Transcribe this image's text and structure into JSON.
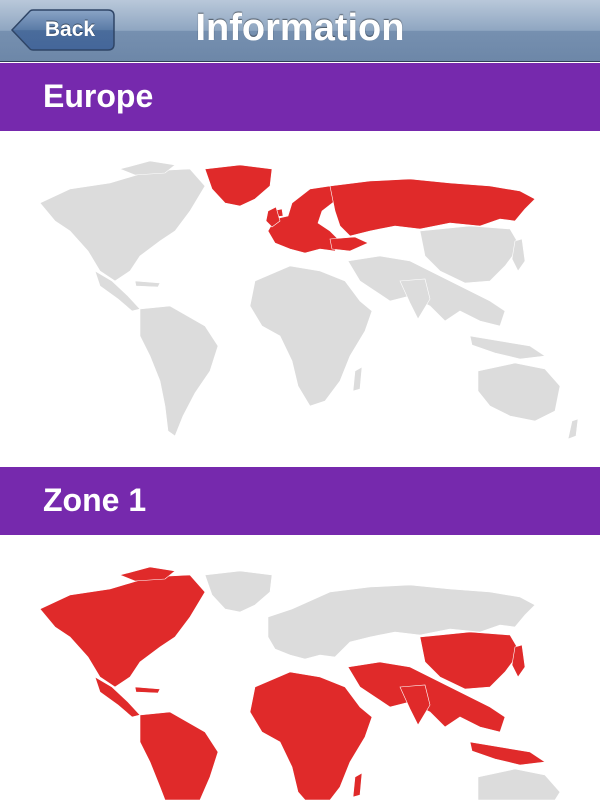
{
  "nav": {
    "back_label": "Back",
    "title": "Information"
  },
  "colors": {
    "header_bg": "#7629ad",
    "highlight": "#e02a2a",
    "land": "#dcdcdc"
  },
  "sections": [
    {
      "title": "Europe",
      "map_icon": "world-map",
      "highlighted_regions": [
        "greenland",
        "europe",
        "russia",
        "turkey"
      ]
    },
    {
      "title": "Zone 1",
      "map_icon": "world-map",
      "highlighted_regions": [
        "north-america",
        "central-america",
        "south-america",
        "africa",
        "middle-east",
        "india",
        "china",
        "southeast-asia",
        "japan",
        "indonesia"
      ]
    }
  ]
}
